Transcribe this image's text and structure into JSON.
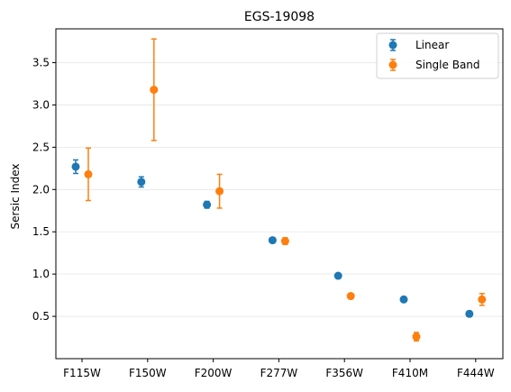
{
  "chart_data": {
    "type": "scatter",
    "title": "EGS-19098",
    "xlabel": "",
    "ylabel": "Sersic Index",
    "categories": [
      "F115W",
      "F150W",
      "F200W",
      "F277W",
      "F356W",
      "F410M",
      "F444W"
    ],
    "ylim": [
      0.0,
      3.9
    ],
    "yticks": [
      "0.5",
      "1.0",
      "1.5",
      "2.0",
      "2.5",
      "3.0",
      "3.5"
    ],
    "grid": "horizontal",
    "legend_position": "top-right",
    "series": [
      {
        "name": "Linear",
        "color": "#1f77b4",
        "values": [
          2.27,
          2.09,
          1.82,
          1.4,
          0.98,
          0.7,
          0.53
        ],
        "errors": [
          0.08,
          0.06,
          0.04,
          0.03,
          0.02,
          0.02,
          0.03
        ]
      },
      {
        "name": "Single Band",
        "color": "#ff7f0e",
        "values": [
          2.18,
          3.18,
          1.98,
          1.39,
          0.74,
          0.26,
          0.7
        ],
        "errors": [
          0.31,
          0.6,
          0.2,
          0.04,
          0.03,
          0.05,
          0.07
        ]
      }
    ]
  }
}
